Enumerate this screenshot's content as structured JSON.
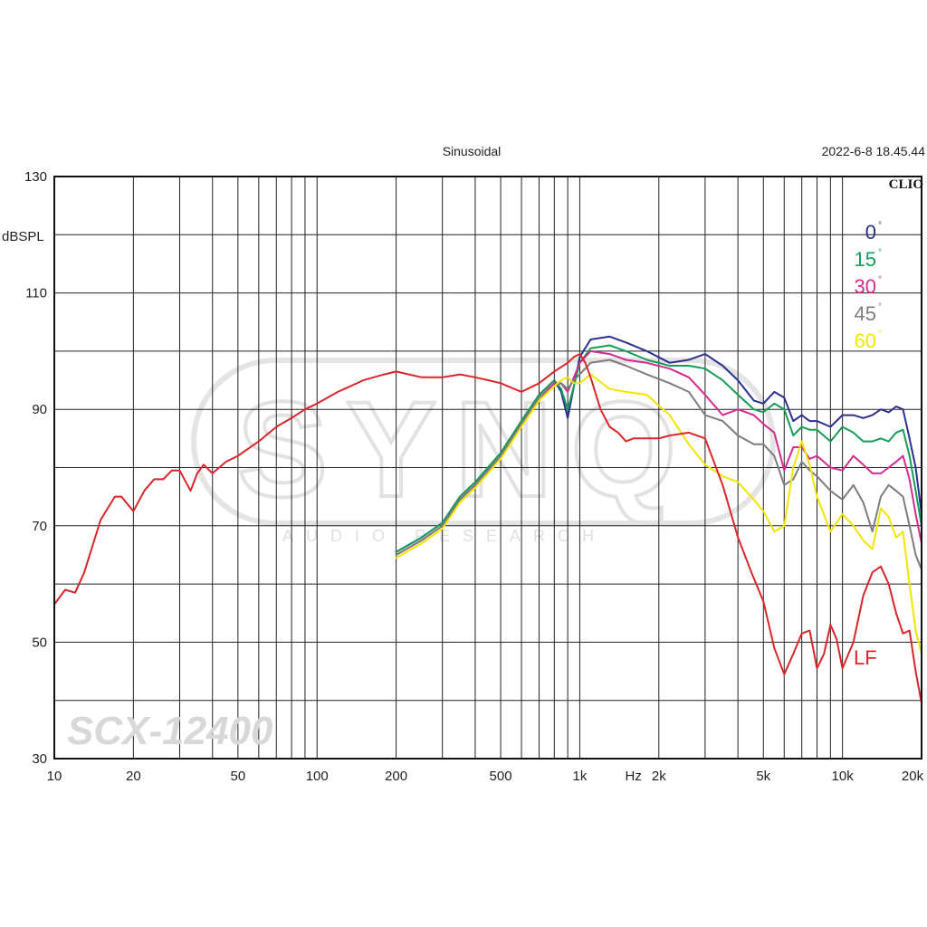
{
  "header": {
    "mode_label": "Sinusoidal",
    "timestamp": "2022-6-8 18.45.44"
  },
  "brand": {
    "clio_label": "CLIO",
    "watermark_text": "SYNQ",
    "watermark_sub": "AUDIO RESEARCH",
    "model_text": "SCX-12400"
  },
  "chart_data": {
    "type": "line",
    "xscale": "log",
    "xlim": [
      10,
      20000
    ],
    "ylim": [
      30,
      130
    ],
    "ylabel": "dBSPL",
    "xlabel": "Hz",
    "grid": true,
    "x_ticks": [
      {
        "v": 10,
        "label": "10"
      },
      {
        "v": 20,
        "label": "20"
      },
      {
        "v": 50,
        "label": "50"
      },
      {
        "v": 100,
        "label": "100"
      },
      {
        "v": 200,
        "label": "200"
      },
      {
        "v": 500,
        "label": "500"
      },
      {
        "v": 1000,
        "label": "1k"
      },
      {
        "v": 1600,
        "label": "Hz"
      },
      {
        "v": 2000,
        "label": "2k"
      },
      {
        "v": 5000,
        "label": "5k"
      },
      {
        "v": 10000,
        "label": "10k"
      },
      {
        "v": 20000,
        "label": "20k"
      }
    ],
    "y_ticks": [
      {
        "v": 130,
        "label": "130"
      },
      {
        "v": 110,
        "label": "110"
      },
      {
        "v": 90,
        "label": "90"
      },
      {
        "v": 70,
        "label": "70"
      },
      {
        "v": 50,
        "label": "50"
      },
      {
        "v": 30,
        "label": "30"
      }
    ],
    "legend_position": "top-right",
    "series": [
      {
        "name": "0",
        "color": "#2b2f8e",
        "points": [
          [
            200,
            65.5
          ],
          [
            250,
            68
          ],
          [
            300,
            70.5
          ],
          [
            350,
            75
          ],
          [
            400,
            77.5
          ],
          [
            500,
            82.5
          ],
          [
            600,
            88
          ],
          [
            700,
            92.5
          ],
          [
            800,
            95
          ],
          [
            850,
            93
          ],
          [
            900,
            88.5
          ],
          [
            950,
            94
          ],
          [
            1000,
            99
          ],
          [
            1100,
            102
          ],
          [
            1300,
            102.5
          ],
          [
            1500,
            101.5
          ],
          [
            1800,
            100
          ],
          [
            2200,
            98
          ],
          [
            2600,
            98.5
          ],
          [
            3000,
            99.5
          ],
          [
            3500,
            97.5
          ],
          [
            4000,
            95
          ],
          [
            4600,
            91.5
          ],
          [
            5000,
            91
          ],
          [
            5500,
            93
          ],
          [
            6000,
            92
          ],
          [
            6500,
            88
          ],
          [
            7000,
            89
          ],
          [
            7500,
            88
          ],
          [
            8000,
            88
          ],
          [
            9000,
            87
          ],
          [
            10000,
            89
          ],
          [
            11000,
            89
          ],
          [
            12000,
            88.5
          ],
          [
            13000,
            89
          ],
          [
            14000,
            90
          ],
          [
            15000,
            89.5
          ],
          [
            16000,
            90.5
          ],
          [
            17000,
            90
          ],
          [
            18000,
            85
          ],
          [
            19000,
            80
          ],
          [
            20000,
            72
          ]
        ]
      },
      {
        "name": "15",
        "color": "#159e57",
        "points": [
          [
            200,
            65.5
          ],
          [
            250,
            68
          ],
          [
            300,
            70.5
          ],
          [
            350,
            75
          ],
          [
            400,
            77.5
          ],
          [
            500,
            82.5
          ],
          [
            600,
            88
          ],
          [
            700,
            92.5
          ],
          [
            800,
            95
          ],
          [
            850,
            93.5
          ],
          [
            900,
            90
          ],
          [
            950,
            94
          ],
          [
            1000,
            98
          ],
          [
            1100,
            100.5
          ],
          [
            1300,
            101
          ],
          [
            1500,
            100
          ],
          [
            1800,
            98.5
          ],
          [
            2200,
            97.5
          ],
          [
            2600,
            97.5
          ],
          [
            3000,
            97
          ],
          [
            3500,
            95
          ],
          [
            4000,
            92.5
          ],
          [
            4600,
            90
          ],
          [
            5000,
            89.5
          ],
          [
            5500,
            91
          ],
          [
            6000,
            90
          ],
          [
            6500,
            85.5
          ],
          [
            7000,
            87
          ],
          [
            7500,
            86.5
          ],
          [
            8000,
            86.5
          ],
          [
            9000,
            84.5
          ],
          [
            10000,
            87
          ],
          [
            11000,
            86
          ],
          [
            12000,
            84.5
          ],
          [
            13000,
            84.5
          ],
          [
            14000,
            85
          ],
          [
            15000,
            84.5
          ],
          [
            16000,
            86
          ],
          [
            17000,
            86.5
          ],
          [
            18000,
            82
          ],
          [
            19000,
            76
          ],
          [
            20000,
            70
          ]
        ]
      },
      {
        "name": "30",
        "color": "#d62b8e",
        "points": [
          [
            200,
            65
          ],
          [
            250,
            67.5
          ],
          [
            300,
            70
          ],
          [
            350,
            74.5
          ],
          [
            400,
            77
          ],
          [
            500,
            82
          ],
          [
            600,
            87.5
          ],
          [
            700,
            92
          ],
          [
            800,
            94.5
          ],
          [
            850,
            94.5
          ],
          [
            900,
            93
          ],
          [
            950,
            95.5
          ],
          [
            1000,
            98
          ],
          [
            1100,
            100
          ],
          [
            1300,
            99.5
          ],
          [
            1500,
            98.5
          ],
          [
            1800,
            98
          ],
          [
            2200,
            97
          ],
          [
            2600,
            95.5
          ],
          [
            3000,
            92.5
          ],
          [
            3500,
            89
          ],
          [
            4000,
            90
          ],
          [
            4600,
            89
          ],
          [
            5000,
            87.5
          ],
          [
            5500,
            86
          ],
          [
            6000,
            79.5
          ],
          [
            6500,
            83.5
          ],
          [
            7000,
            83.5
          ],
          [
            7500,
            81.5
          ],
          [
            8000,
            82
          ],
          [
            9000,
            80
          ],
          [
            10000,
            79.5
          ],
          [
            11000,
            82
          ],
          [
            12000,
            80.5
          ],
          [
            13000,
            79
          ],
          [
            14000,
            79
          ],
          [
            15000,
            80
          ],
          [
            16000,
            81
          ],
          [
            17000,
            82
          ],
          [
            18000,
            78
          ],
          [
            19000,
            72
          ],
          [
            20000,
            67
          ]
        ]
      },
      {
        "name": "45",
        "color": "#7d7d7d",
        "points": [
          [
            200,
            65
          ],
          [
            250,
            67.5
          ],
          [
            300,
            70
          ],
          [
            350,
            74.5
          ],
          [
            400,
            77
          ],
          [
            500,
            82
          ],
          [
            600,
            87.5
          ],
          [
            700,
            92
          ],
          [
            800,
            94
          ],
          [
            850,
            94.5
          ],
          [
            900,
            93.5
          ],
          [
            950,
            95
          ],
          [
            1000,
            96
          ],
          [
            1100,
            98
          ],
          [
            1300,
            98.5
          ],
          [
            1500,
            97.5
          ],
          [
            1800,
            96
          ],
          [
            2200,
            94.5
          ],
          [
            2600,
            93
          ],
          [
            3000,
            89
          ],
          [
            3500,
            88
          ],
          [
            4000,
            85.5
          ],
          [
            4600,
            84
          ],
          [
            5000,
            84
          ],
          [
            5500,
            82
          ],
          [
            6000,
            77
          ],
          [
            6500,
            78
          ],
          [
            7000,
            81
          ],
          [
            7500,
            79.5
          ],
          [
            8000,
            78.5
          ],
          [
            9000,
            76
          ],
          [
            10000,
            74.5
          ],
          [
            11000,
            77
          ],
          [
            12000,
            74
          ],
          [
            13000,
            69
          ],
          [
            14000,
            75
          ],
          [
            15000,
            77
          ],
          [
            16000,
            76
          ],
          [
            17000,
            75
          ],
          [
            18000,
            70
          ],
          [
            19000,
            65
          ],
          [
            20000,
            62.5
          ]
        ]
      },
      {
        "name": "60",
        "color": "#f2e600",
        "points": [
          [
            200,
            64.5
          ],
          [
            250,
            67
          ],
          [
            300,
            69.5
          ],
          [
            350,
            74
          ],
          [
            400,
            76.5
          ],
          [
            500,
            81.5
          ],
          [
            600,
            87
          ],
          [
            700,
            91.5
          ],
          [
            800,
            94
          ],
          [
            850,
            95
          ],
          [
            900,
            95.5
          ],
          [
            950,
            94.5
          ],
          [
            1000,
            94.5
          ],
          [
            1100,
            96
          ],
          [
            1300,
            93.5
          ],
          [
            1500,
            93
          ],
          [
            1800,
            92.5
          ],
          [
            2200,
            89
          ],
          [
            2600,
            84
          ],
          [
            3000,
            80.5
          ],
          [
            3500,
            78.5
          ],
          [
            4000,
            77.5
          ],
          [
            4600,
            74.5
          ],
          [
            5000,
            72.5
          ],
          [
            5500,
            69
          ],
          [
            6000,
            70
          ],
          [
            6500,
            80
          ],
          [
            7000,
            84.5
          ],
          [
            7500,
            80.5
          ],
          [
            8000,
            75
          ],
          [
            9000,
            69
          ],
          [
            10000,
            72
          ],
          [
            11000,
            70
          ],
          [
            12000,
            67.5
          ],
          [
            13000,
            66
          ],
          [
            14000,
            73
          ],
          [
            15000,
            71.5
          ],
          [
            16000,
            68
          ],
          [
            17000,
            69
          ],
          [
            18000,
            60
          ],
          [
            19000,
            52
          ],
          [
            20000,
            48
          ]
        ]
      },
      {
        "name": "LF",
        "color": "#d9262b",
        "points": [
          [
            10,
            56.5
          ],
          [
            11,
            59
          ],
          [
            12,
            58.5
          ],
          [
            13,
            62
          ],
          [
            15,
            71
          ],
          [
            17,
            75
          ],
          [
            18,
            75
          ],
          [
            20,
            72.5
          ],
          [
            22,
            76
          ],
          [
            24,
            78
          ],
          [
            26,
            78
          ],
          [
            28,
            79.5
          ],
          [
            30,
            79.5
          ],
          [
            33,
            76
          ],
          [
            35,
            79
          ],
          [
            37,
            80.5
          ],
          [
            40,
            79
          ],
          [
            45,
            81
          ],
          [
            50,
            82
          ],
          [
            60,
            84.5
          ],
          [
            70,
            87
          ],
          [
            80,
            88.5
          ],
          [
            90,
            90
          ],
          [
            100,
            91
          ],
          [
            120,
            93
          ],
          [
            150,
            95
          ],
          [
            180,
            96
          ],
          [
            200,
            96.5
          ],
          [
            250,
            95.5
          ],
          [
            300,
            95.5
          ],
          [
            350,
            96
          ],
          [
            400,
            95.5
          ],
          [
            450,
            95
          ],
          [
            500,
            94.5
          ],
          [
            600,
            93
          ],
          [
            700,
            94.5
          ],
          [
            800,
            96.5
          ],
          [
            900,
            98
          ],
          [
            950,
            99
          ],
          [
            1000,
            99.5
          ],
          [
            1050,
            98
          ],
          [
            1100,
            95.5
          ],
          [
            1200,
            90
          ],
          [
            1300,
            87
          ],
          [
            1400,
            86
          ],
          [
            1500,
            84.5
          ],
          [
            1600,
            85
          ],
          [
            1800,
            85
          ],
          [
            2000,
            85
          ],
          [
            2200,
            85.5
          ],
          [
            2600,
            86
          ],
          [
            3000,
            85
          ],
          [
            3500,
            77
          ],
          [
            4000,
            68
          ],
          [
            4500,
            62
          ],
          [
            5000,
            57
          ],
          [
            5500,
            49
          ],
          [
            6000,
            44.5
          ],
          [
            6500,
            48
          ],
          [
            7000,
            51.5
          ],
          [
            7500,
            52
          ],
          [
            8000,
            45.5
          ],
          [
            8500,
            48
          ],
          [
            9000,
            53
          ],
          [
            9500,
            50.5
          ],
          [
            10000,
            45.5
          ],
          [
            11000,
            50
          ],
          [
            12000,
            58
          ],
          [
            13000,
            62
          ],
          [
            14000,
            63
          ],
          [
            15000,
            60
          ],
          [
            16000,
            55
          ],
          [
            17000,
            51.5
          ],
          [
            18000,
            52
          ],
          [
            19000,
            45
          ],
          [
            20000,
            39.5
          ]
        ]
      }
    ]
  }
}
